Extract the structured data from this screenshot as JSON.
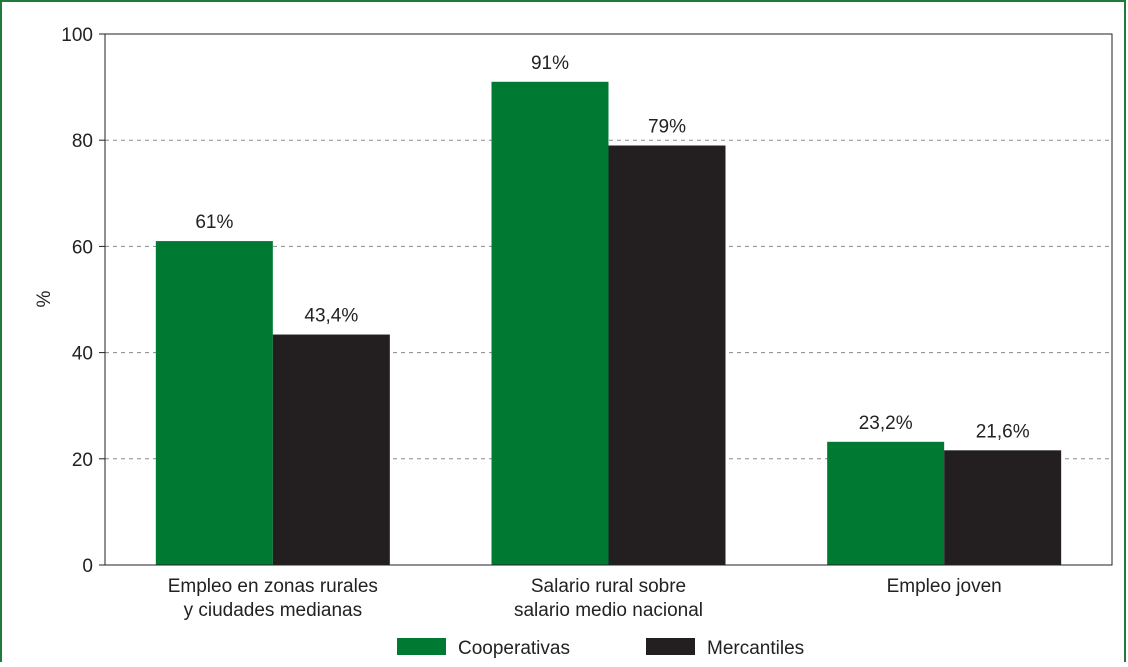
{
  "chart_data": {
    "type": "bar",
    "title": "",
    "xlabel": "",
    "ylabel": "%",
    "ylim": [
      0,
      100
    ],
    "yticks": [
      0,
      20,
      40,
      60,
      80,
      100
    ],
    "grid": "horizontal-dashed",
    "legend_position": "bottom",
    "categories": [
      [
        "Empleo en zonas rurales",
        "y ciudades medianas"
      ],
      [
        "Salario rural sobre",
        "salario medio nacional"
      ],
      [
        "Empleo joven"
      ]
    ],
    "series": [
      {
        "name": "Cooperativas",
        "color": "#007a33",
        "values": [
          61,
          91,
          23.2
        ],
        "labels": [
          "61%",
          "91%",
          "23,2%"
        ]
      },
      {
        "name": "Mercantiles",
        "color": "#231f20",
        "values": [
          43.4,
          79,
          21.6
        ],
        "labels": [
          "43,4%",
          "79%",
          "21,6%"
        ]
      }
    ]
  }
}
